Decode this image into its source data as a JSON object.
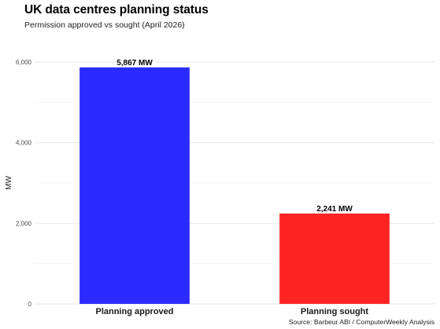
{
  "chart_data": {
    "type": "bar",
    "title": "UK data centres planning status",
    "subtitle": "Permission approved vs sought (April 2026)",
    "caption": "Source: Barbeur ABI / ComputerWeekly Analysis",
    "xlabel": "",
    "ylabel": "MW",
    "categories": [
      "Planning approved",
      "Planning sought"
    ],
    "values": [
      5867,
      2241
    ],
    "data_labels": [
      "5,867 MW",
      "2,241 MW"
    ],
    "colors": [
      "#2b2bff",
      "#ff2424"
    ],
    "yticks": [
      0,
      2000,
      4000,
      6000
    ],
    "ytick_labels": [
      "0",
      "2,000",
      "4,000",
      "6,000"
    ],
    "ylim": [
      0,
      6000
    ],
    "grid": true,
    "legend": "none"
  }
}
